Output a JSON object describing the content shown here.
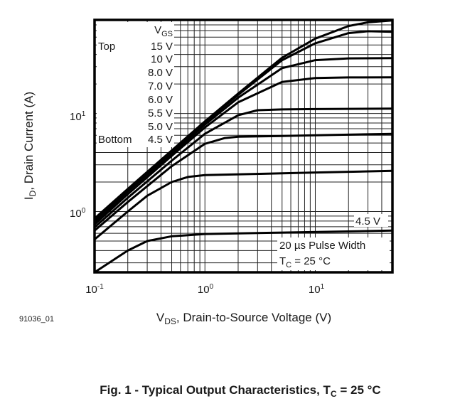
{
  "figure_id": "91036_01",
  "caption": {
    "prefix": "Fig. 1 - Typical Output Characteristics, T",
    "sub": "C",
    "suffix": " = 25 °C"
  },
  "chart_data": {
    "type": "line",
    "xscale": "log",
    "yscale": "log",
    "xlim": [
      0.1,
      50
    ],
    "ylim": [
      0.24,
      90
    ],
    "grid": true,
    "xlabel": {
      "main": "V",
      "sub": "DS",
      "rest": ", Drain-to-Source Voltage (V)"
    },
    "ylabel": {
      "main": "I",
      "sub": "D",
      "rest": ", Drain Current (A)"
    },
    "xticks": [
      {
        "base": "10",
        "exp": "-1"
      },
      {
        "base": "10",
        "exp": "0"
      },
      {
        "base": "10",
        "exp": "1"
      }
    ],
    "yticks": [
      {
        "base": "10",
        "exp": "0"
      },
      {
        "base": "10",
        "exp": "1"
      }
    ],
    "legend": {
      "title_main": "V",
      "title_sub": "GS",
      "top_label": "Top",
      "bottom_label": "Bottom",
      "entries": [
        "15 V",
        "10 V",
        "8.0 V",
        "7.0 V",
        "6.0 V",
        "5.5 V",
        "5.0 V",
        "4.5 V"
      ]
    },
    "annotations": {
      "curve_label": "4.5 V",
      "pulse": "20 µs Pulse Width",
      "temp_main": "T",
      "temp_sub": "C",
      "temp_rest": " = 25 °C"
    },
    "series": [
      {
        "name": "15 V",
        "x": [
          0.1,
          0.2,
          0.5,
          1,
          2,
          5,
          10,
          20,
          30,
          50
        ],
        "y": [
          0.85,
          1.7,
          4.2,
          8.3,
          16,
          37,
          58,
          78,
          85,
          89
        ]
      },
      {
        "name": "10 V",
        "x": [
          0.1,
          0.2,
          0.5,
          1,
          2,
          5,
          10,
          20,
          30,
          50
        ],
        "y": [
          0.82,
          1.65,
          4.1,
          8.1,
          15.5,
          35,
          52,
          66,
          69,
          68
        ]
      },
      {
        "name": "8.0 V",
        "x": [
          0.1,
          0.2,
          0.5,
          1,
          2,
          5,
          10,
          20,
          50
        ],
        "y": [
          0.78,
          1.6,
          3.9,
          7.7,
          14.5,
          29,
          35,
          36.5,
          36.7
        ]
      },
      {
        "name": "7.0 V",
        "x": [
          0.1,
          0.2,
          0.5,
          1,
          2,
          5,
          10,
          20,
          50
        ],
        "y": [
          0.74,
          1.5,
          3.7,
          7.2,
          13,
          21,
          23,
          23.3,
          23.4
        ]
      },
      {
        "name": "6.0 V",
        "x": [
          0.1,
          0.2,
          0.5,
          1,
          2,
          3,
          5,
          10,
          50
        ],
        "y": [
          0.69,
          1.38,
          3.3,
          6.2,
          9.6,
          10.8,
          11,
          11.1,
          11.2
        ]
      },
      {
        "name": "5.5 V",
        "x": [
          0.1,
          0.2,
          0.5,
          1,
          1.5,
          2,
          5,
          10,
          50
        ],
        "y": [
          0.64,
          1.25,
          2.9,
          4.9,
          5.6,
          5.8,
          5.9,
          6.0,
          6.2
        ]
      },
      {
        "name": "5.0 V",
        "x": [
          0.1,
          0.2,
          0.3,
          0.5,
          0.7,
          1,
          5,
          10,
          50
        ],
        "y": [
          0.52,
          1.0,
          1.45,
          2.0,
          2.25,
          2.35,
          2.45,
          2.5,
          2.6
        ]
      },
      {
        "name": "4.5 V",
        "x": [
          0.1,
          0.2,
          0.3,
          0.5,
          1,
          5,
          50
        ],
        "y": [
          0.24,
          0.4,
          0.5,
          0.56,
          0.59,
          0.61,
          0.64
        ]
      }
    ]
  }
}
